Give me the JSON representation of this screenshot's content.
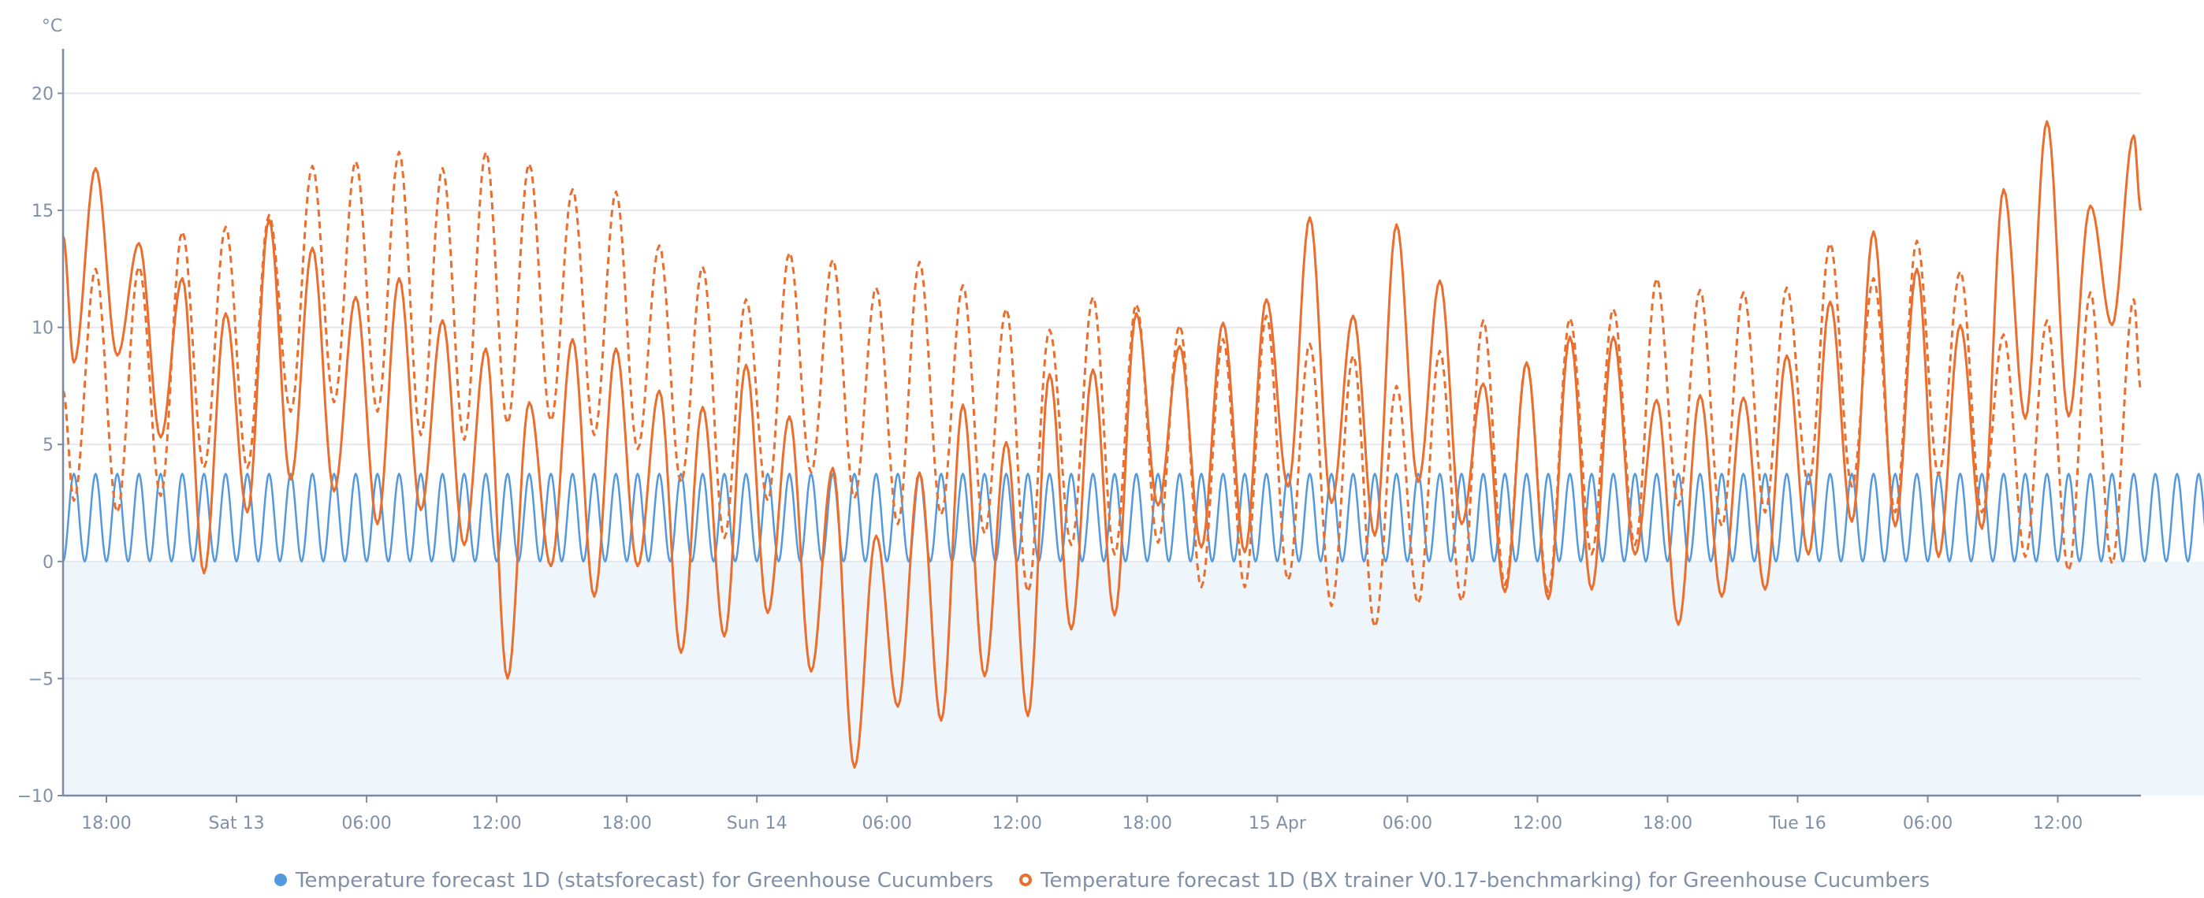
{
  "chart_data": {
    "type": "line",
    "y_unit": "°C",
    "ylim": [
      -10,
      21.9
    ],
    "xlim": [
      "2024-04-12T16:00",
      "2024-04-16T15:50"
    ],
    "grid": true,
    "legend_placement": "bottom-center",
    "y_ticks": [
      {
        "value": -10,
        "label": "−10"
      },
      {
        "value": -5,
        "label": "−5"
      },
      {
        "value": 0,
        "label": "0"
      },
      {
        "value": 5,
        "label": "5"
      },
      {
        "value": 10,
        "label": "10"
      },
      {
        "value": 15,
        "label": "15"
      },
      {
        "value": 20,
        "label": "20"
      }
    ],
    "x_ticks": [
      {
        "t": "2024-04-12T18:00",
        "label": "18:00"
      },
      {
        "t": "2024-04-13T00:00",
        "label": "Sat 13"
      },
      {
        "t": "2024-04-13T06:00",
        "label": "06:00"
      },
      {
        "t": "2024-04-13T12:00",
        "label": "12:00"
      },
      {
        "t": "2024-04-13T18:00",
        "label": "18:00"
      },
      {
        "t": "2024-04-14T00:00",
        "label": "Sun 14"
      },
      {
        "t": "2024-04-14T06:00",
        "label": "06:00"
      },
      {
        "t": "2024-04-14T12:00",
        "label": "12:00"
      },
      {
        "t": "2024-04-14T18:00",
        "label": "18:00"
      },
      {
        "t": "2024-04-15T00:00",
        "label": "15 Apr"
      },
      {
        "t": "2024-04-15T06:00",
        "label": "06:00"
      },
      {
        "t": "2024-04-15T12:00",
        "label": "12:00"
      },
      {
        "t": "2024-04-15T18:00",
        "label": "18:00"
      },
      {
        "t": "2024-04-16T00:00",
        "label": "Tue 16"
      },
      {
        "t": "2024-04-16T06:00",
        "label": "06:00"
      },
      {
        "t": "2024-04-16T12:00",
        "label": "12:00"
      }
    ],
    "band": {
      "from": -10,
      "to": 0,
      "color": "#eef5fb"
    },
    "series": [
      {
        "name": "Temperature forecast 1D (statsforecast) for Greenhouse Cucumbers",
        "color": "#5499de",
        "style": "solid",
        "marker": "dot",
        "x_start": "2024-04-12T16:00",
        "x_step_minutes": 30,
        "values": [
          0,
          3.75,
          0,
          3.75,
          0,
          3.75,
          0,
          3.75,
          0,
          3.75,
          0,
          3.75,
          0,
          3.75,
          0,
          3.75,
          0,
          3.75,
          0,
          3.75,
          0,
          3.75,
          0,
          3.75,
          0,
          3.75,
          0,
          3.75,
          0,
          3.75,
          0,
          3.75,
          0,
          3.75,
          0,
          3.75,
          0,
          3.75,
          0,
          3.75,
          0,
          3.75,
          0,
          3.75,
          0,
          3.75,
          0,
          3.75,
          0,
          3.75,
          0,
          3.75,
          0,
          3.75,
          0,
          3.75,
          0,
          3.75,
          0,
          3.75,
          0,
          3.75,
          0,
          3.75,
          0,
          3.75,
          0,
          3.75,
          0,
          3.75,
          0,
          3.75,
          0,
          3.75,
          0,
          3.75,
          0,
          3.75,
          0,
          3.75,
          0,
          3.75,
          0,
          3.75,
          0,
          3.75,
          0,
          3.75,
          0,
          3.75,
          0,
          3.75,
          0,
          3.75,
          0,
          3.75,
          0,
          3.75,
          0,
          3.75,
          0,
          3.75,
          0,
          3.75,
          0,
          3.75,
          0,
          3.75,
          0,
          3.75,
          0,
          3.75,
          0,
          3.75,
          0,
          3.75,
          0,
          3.75,
          0,
          3.75,
          0,
          3.75,
          0,
          3.75,
          0,
          3.75,
          0,
          3.75,
          0,
          3.75,
          0,
          3.75,
          0,
          3.75,
          0,
          3.75,
          0,
          3.75,
          0,
          3.75,
          0,
          3.75,
          0,
          3.75,
          0,
          3.75,
          0,
          3.75,
          0,
          3.75,
          0,
          3.75,
          0,
          3.75,
          0,
          3.75,
          0,
          3.75,
          0,
          3.75,
          0,
          3.75,
          0,
          3.75,
          0,
          3.75,
          0,
          3.75,
          0,
          3.75,
          0,
          3.75,
          0,
          3.75,
          0,
          3.75,
          0,
          3.75,
          0,
          3.75,
          0,
          3.75,
          0,
          3.75,
          0,
          3.75,
          0,
          3.75,
          0,
          3.75,
          0,
          3.75,
          0,
          3.75,
          0,
          3.75,
          0,
          3.75,
          0,
          3.75,
          0,
          3.75,
          0,
          3.75,
          0,
          3.75,
          0,
          3.75,
          0,
          3.75,
          0,
          3.75,
          0,
          3.75
        ]
      },
      {
        "name": "Temperature forecast 1D (BX trainer V0.17-benchmarking) for Greenhouse Cucumbers",
        "color": "#ea6f2f",
        "style": "solid",
        "marker": "ring",
        "start": {
          "x": "2024-04-12T16:00",
          "y": 13.9
        },
        "x_start": "2024-04-12T16:30",
        "x_step_minutes": 60,
        "values": [
          8.5,
          16.8,
          8.8,
          13.6,
          5.3,
          12.1,
          -0.5,
          10.6,
          2.1,
          14.6,
          3.5,
          13.4,
          3.0,
          11.3,
          1.6,
          12.1,
          2.2,
          10.3,
          0.7,
          9.1,
          -5.0,
          6.8,
          -0.2,
          9.5,
          -1.5,
          9.1,
          -0.2,
          7.3,
          -3.9,
          6.6,
          -3.2,
          8.4,
          -2.2,
          6.2,
          -4.7,
          4.0,
          -8.8,
          1.1,
          -6.2,
          3.8,
          -6.8,
          6.7,
          -4.9,
          5.1,
          -6.6,
          8.0,
          -2.9,
          8.2,
          -2.3,
          10.6,
          2.4,
          9.2,
          0.6,
          10.2,
          0.4,
          11.2,
          3.2,
          14.7,
          2.5,
          10.5,
          1.1,
          14.4,
          3.4,
          12.0,
          1.6,
          7.6,
          -1.3,
          8.5,
          -1.6,
          9.6,
          -1.2,
          9.6,
          0.3,
          6.9,
          -2.7,
          7.1,
          -1.5,
          7.0,
          -1.2,
          8.8,
          0.3,
          11.1,
          1.7,
          14.1,
          1.5,
          12.5,
          0.2,
          10.1,
          1.4,
          15.9,
          6.1,
          18.8,
          6.2,
          15.2,
          10.1,
          18.2
        ],
        "end": {
          "x": "2024-04-16T15:50",
          "y": 15.0
        }
      },
      {
        "color": "#ea6f2f",
        "style": "dashed",
        "start": {
          "x": "2024-04-12T16:00",
          "y": 7.3
        },
        "x_start": "2024-04-12T16:30",
        "x_step_minutes": 60,
        "values": [
          2.6,
          12.5,
          2.1,
          12.6,
          2.8,
          14.1,
          4.0,
          14.3,
          4.0,
          14.8,
          6.4,
          16.9,
          6.8,
          17.1,
          6.4,
          17.5,
          5.4,
          16.8,
          5.2,
          17.5,
          5.9,
          17.0,
          6.0,
          15.9,
          5.4,
          15.8,
          4.8,
          13.5,
          3.4,
          12.6,
          1.0,
          11.2,
          2.6,
          13.2,
          3.8,
          12.9,
          2.7,
          11.7,
          1.6,
          12.8,
          2.0,
          11.8,
          1.2,
          10.8,
          -1.3,
          9.9,
          0.7,
          11.3,
          0.3,
          11.0,
          0.8,
          10.1,
          -1.1,
          9.5,
          -1.1,
          10.5,
          -0.8,
          9.3,
          -1.9,
          8.8,
          -2.8,
          7.5,
          -1.8,
          9.0,
          -1.7,
          10.3,
          -1.0,
          8.5,
          -1.3,
          10.4,
          0.3,
          10.8,
          0.7,
          12.1,
          2.4,
          11.6,
          1.5,
          11.5,
          2.1,
          11.7,
          3.3,
          13.6,
          3.2,
          12.1,
          2.1,
          13.7,
          3.7,
          12.4,
          2.1,
          9.7,
          0.2,
          10.3,
          -0.4,
          11.5,
          -0.1,
          11.2
        ],
        "end": {
          "x": "2024-04-16T15:50",
          "y": 7.3
        }
      }
    ]
  }
}
